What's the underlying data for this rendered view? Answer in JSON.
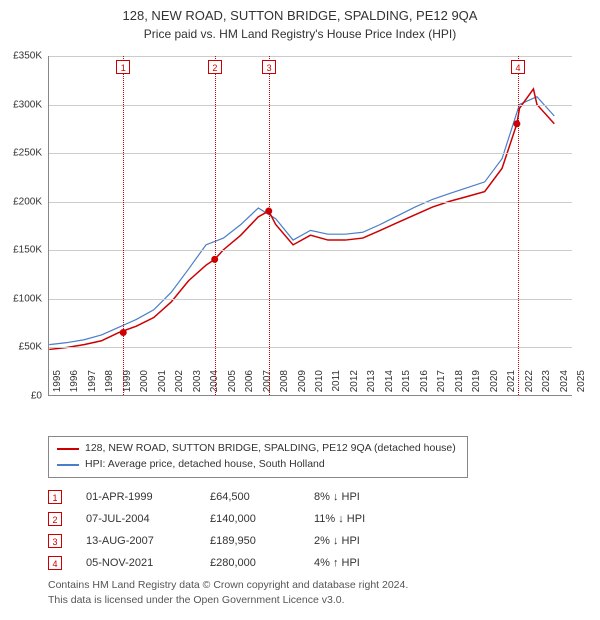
{
  "title": "128, NEW ROAD, SUTTON BRIDGE, SPALDING, PE12 9QA",
  "subtitle": "Price paid vs. HM Land Registry's House Price Index (HPI)",
  "chart": {
    "type": "line",
    "ylim": [
      0,
      350000
    ],
    "ytick_step": 50000,
    "y_labels": [
      "£0",
      "£50K",
      "£100K",
      "£150K",
      "£200K",
      "£250K",
      "£300K",
      "£350K"
    ],
    "xlim": [
      1995,
      2025
    ],
    "x_labels": [
      "1995",
      "1996",
      "1997",
      "1998",
      "1999",
      "2000",
      "2001",
      "2002",
      "2003",
      "2004",
      "2005",
      "2006",
      "2007",
      "2008",
      "2009",
      "2010",
      "2011",
      "2012",
      "2013",
      "2014",
      "2015",
      "2016",
      "2017",
      "2018",
      "2019",
      "2020",
      "2021",
      "2022",
      "2023",
      "2024",
      "2025"
    ],
    "grid_color": "#cccccc",
    "axis_color": "#888888",
    "background": "#ffffff",
    "series": [
      {
        "name": "128, NEW ROAD, SUTTON BRIDGE, SPALDING, PE12 9QA (detached house)",
        "color": "#cc0000",
        "width": 1.5,
        "x": [
          1995,
          1996,
          1997,
          1998,
          1999,
          2000,
          2001,
          2002,
          2003,
          2004,
          2004.5,
          2005,
          2006,
          2007,
          2007.6,
          2008,
          2009,
          2010,
          2011,
          2012,
          2013,
          2014,
          2015,
          2016,
          2017,
          2018,
          2019,
          2020,
          2021,
          2021.85,
          2022,
          2022.8,
          2023,
          2024
        ],
        "y": [
          47000,
          49000,
          52000,
          56000,
          64500,
          71000,
          80000,
          96000,
          118000,
          134000,
          140000,
          150000,
          165000,
          184000,
          189950,
          176000,
          155000,
          165000,
          160000,
          160000,
          162000,
          170000,
          178000,
          186000,
          194000,
          200000,
          205000,
          210000,
          234000,
          280000,
          296000,
          316000,
          300000,
          280000
        ]
      },
      {
        "name": "HPI: Average price, detached house, South Holland",
        "color": "#4a7ec8",
        "width": 1.2,
        "x": [
          1995,
          1996,
          1997,
          1998,
          1999,
          2000,
          2001,
          2002,
          2003,
          2004,
          2005,
          2006,
          2007,
          2008,
          2009,
          2010,
          2011,
          2012,
          2013,
          2014,
          2015,
          2016,
          2017,
          2018,
          2019,
          2020,
          2021,
          2022,
          2023,
          2024
        ],
        "y": [
          52000,
          54000,
          57000,
          62000,
          70000,
          78000,
          88000,
          106000,
          130000,
          155000,
          162000,
          176000,
          193000,
          182000,
          160000,
          170000,
          166000,
          166000,
          168000,
          176000,
          185000,
          194000,
          202000,
          208000,
          214000,
          220000,
          244000,
          300000,
          308000,
          288000
        ]
      }
    ],
    "sale_points": {
      "color": "#cc0000",
      "radius": 3.5,
      "points": [
        {
          "x": 1999.25,
          "y": 64500
        },
        {
          "x": 2004.5,
          "y": 140000
        },
        {
          "x": 2007.6,
          "y": 189950
        },
        {
          "x": 2021.85,
          "y": 280000
        }
      ]
    },
    "markers": [
      {
        "n": "1",
        "x": 1999.25
      },
      {
        "n": "2",
        "x": 2004.5
      },
      {
        "n": "3",
        "x": 2007.6
      },
      {
        "n": "4",
        "x": 2021.85
      }
    ]
  },
  "legend": {
    "items": [
      {
        "color": "#cc0000",
        "label": "128, NEW ROAD, SUTTON BRIDGE, SPALDING, PE12 9QA (detached house)"
      },
      {
        "color": "#4a7ec8",
        "label": "HPI: Average price, detached house, South Holland"
      }
    ]
  },
  "transactions": [
    {
      "n": "1",
      "date": "01-APR-1999",
      "price": "£64,500",
      "diff": "8% ↓ HPI"
    },
    {
      "n": "2",
      "date": "07-JUL-2004",
      "price": "£140,000",
      "diff": "11% ↓ HPI"
    },
    {
      "n": "3",
      "date": "13-AUG-2007",
      "price": "£189,950",
      "diff": "2% ↓ HPI"
    },
    {
      "n": "4",
      "date": "05-NOV-2021",
      "price": "£280,000",
      "diff": "4% ↑ HPI"
    }
  ],
  "attribution": {
    "line1": "Contains HM Land Registry data © Crown copyright and database right 2024.",
    "line2": "This data is licensed under the Open Government Licence v3.0."
  }
}
